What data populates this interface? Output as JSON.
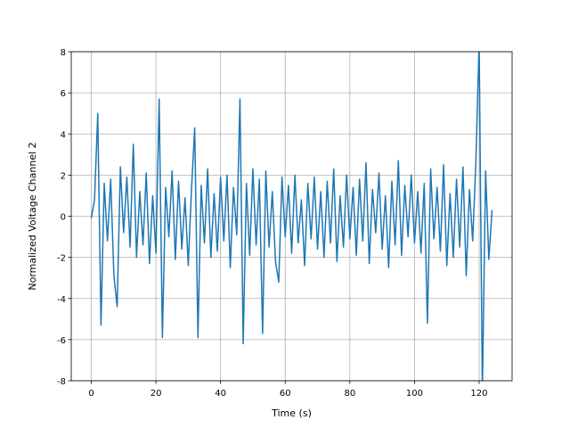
{
  "chart_data": {
    "type": "line",
    "xlabel": "Time (s)",
    "ylabel": "Normalized Voltage Channel 2",
    "x": [
      0,
      1,
      2,
      3,
      4,
      5,
      6,
      7,
      8,
      9,
      10,
      11,
      12,
      13,
      14,
      15,
      16,
      17,
      18,
      19,
      20,
      21,
      22,
      23,
      24,
      25,
      26,
      27,
      28,
      29,
      30,
      31,
      32,
      33,
      34,
      35,
      36,
      37,
      38,
      39,
      40,
      41,
      42,
      43,
      44,
      45,
      46,
      47,
      48,
      49,
      50,
      51,
      52,
      53,
      54,
      55,
      56,
      57,
      58,
      59,
      60,
      61,
      62,
      63,
      64,
      65,
      66,
      67,
      68,
      69,
      70,
      71,
      72,
      73,
      74,
      75,
      76,
      77,
      78,
      79,
      80,
      81,
      82,
      83,
      84,
      85,
      86,
      87,
      88,
      89,
      90,
      91,
      92,
      93,
      94,
      95,
      96,
      97,
      98,
      99,
      100,
      101,
      102,
      103,
      104,
      105,
      106,
      107,
      108,
      109,
      110,
      111,
      112,
      113,
      114,
      115,
      116,
      117,
      118,
      119,
      120,
      121,
      122,
      123,
      124
    ],
    "series": [
      {
        "color": "#1f77b4",
        "values": [
          -0.1,
          0.8,
          5.0,
          -5.3,
          1.6,
          -1.2,
          1.8,
          -2.9,
          -4.4,
          2.4,
          -0.8,
          1.9,
          -1.5,
          3.5,
          -2.0,
          1.2,
          -1.4,
          2.1,
          -2.3,
          1.0,
          -1.8,
          5.7,
          -5.9,
          1.4,
          -1.0,
          2.2,
          -2.1,
          1.7,
          -1.6,
          0.9,
          -2.4,
          1.3,
          4.3,
          -5.9,
          1.5,
          -1.3,
          2.3,
          -2.0,
          1.1,
          -1.7,
          1.9,
          -1.2,
          2.0,
          -2.5,
          1.4,
          -0.9,
          5.7,
          -6.2,
          1.6,
          -1.9,
          2.3,
          -1.4,
          1.8,
          -5.7,
          2.2,
          -1.5,
          1.2,
          -2.2,
          -3.2,
          1.9,
          -1.0,
          1.5,
          -1.8,
          2.0,
          -1.3,
          0.8,
          -2.4,
          1.6,
          -1.1,
          1.9,
          -1.6,
          1.2,
          -2.0,
          1.7,
          -1.3,
          2.3,
          -2.2,
          1.0,
          -1.5,
          2.0,
          -1.1,
          1.4,
          -1.9,
          1.8,
          -1.2,
          2.6,
          -2.3,
          1.3,
          -0.8,
          2.1,
          -1.6,
          1.0,
          -2.5,
          1.7,
          -1.4,
          2.7,
          -1.9,
          1.5,
          -1.0,
          2.0,
          -1.3,
          1.2,
          -1.8,
          1.6,
          -5.2,
          2.3,
          -1.1,
          1.4,
          -1.7,
          2.5,
          -2.4,
          1.1,
          -2.0,
          1.8,
          -1.5,
          2.4,
          -2.9,
          1.3,
          -1.2,
          2.7,
          8.5,
          -8.5,
          2.2,
          -2.1,
          0.3
        ]
      }
    ],
    "xlim": [
      -6.2,
      130.2
    ],
    "ylim": [
      -8,
      8
    ],
    "xticks": [
      0,
      20,
      40,
      60,
      80,
      100,
      120
    ],
    "yticks": [
      -8,
      -6,
      -4,
      -2,
      0,
      2,
      4,
      6,
      8
    ],
    "grid": true
  }
}
